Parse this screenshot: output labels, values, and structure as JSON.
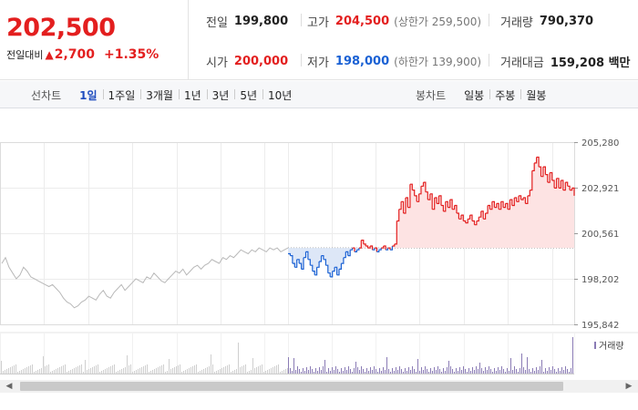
{
  "header": {
    "price": "202,500",
    "change_label": "전일대비",
    "change_arrow": "▲",
    "change_value": "2,700",
    "change_pct": "+1.35%",
    "stats": {
      "prev_label": "전일",
      "prev_value": "199,800",
      "high_label": "고가",
      "high_value": "204,500",
      "upper_limit": "(상한가 259,500)",
      "volume_label": "거래량",
      "volume_value": "790,370",
      "open_label": "시가",
      "open_value": "200,000",
      "low_label": "저가",
      "low_value": "198,000",
      "lower_limit": "(하한가 139,900)",
      "amount_label": "거래대금",
      "amount_value": "159,208 백만"
    }
  },
  "toolbar": {
    "line_title": "선차트",
    "line_periods": [
      "1일",
      "1주일",
      "3개월",
      "1년",
      "3년",
      "5년",
      "10년"
    ],
    "active_period": "1일",
    "candle_title": "봉차트",
    "candle_periods": [
      "일봉",
      "주봉",
      "월봉"
    ]
  },
  "chart_data": {
    "type": "line",
    "ylim": [
      195842,
      205280
    ],
    "y_ticks": [
      "205,280",
      "202,921",
      "200,561",
      "198,202",
      "195,842"
    ],
    "y_tick_values": [
      205280,
      202921,
      200561,
      198202,
      195842
    ],
    "reference_price": 199800,
    "volume_legend": "거래량",
    "colors": {
      "up": "#e31f1f",
      "down": "#1a61d4",
      "prev": "#b8b8b8",
      "fill_up": "#fde3e3",
      "fill_down": "#dde7f7",
      "volume": "#8a7bb5"
    },
    "series": [
      {
        "values": [
          199000,
          199300,
          198800,
          198500,
          198200,
          198400,
          198800,
          198600,
          198300,
          198200,
          198100,
          198000,
          197900,
          197800,
          197900,
          197700,
          197500,
          197200,
          197000,
          196900,
          196700,
          196800,
          197000,
          197100,
          197300,
          197200,
          197100,
          197400,
          197600,
          197300,
          197200,
          197500,
          197700,
          197900,
          197600,
          197800,
          198000,
          198200,
          198100,
          198000,
          198300,
          198200,
          198500,
          198300,
          198100,
          198000,
          198200,
          198400,
          198600,
          198500,
          198700,
          198400,
          198600,
          198800,
          198900,
          198700,
          198900,
          199000,
          199200,
          199100,
          199000,
          199300,
          199200,
          199400,
          199300,
          199500,
          199700,
          199600,
          199500,
          199700,
          199600,
          199800,
          199700,
          199600,
          199800,
          199700,
          199800,
          199600,
          199700,
          199800
        ]
      },
      {
        "values": [
          199500,
          199400,
          199000,
          198800,
          199200,
          199000,
          198700,
          199300,
          199600,
          199200,
          198900,
          198600,
          198400,
          198800,
          199100,
          199400,
          199200,
          198900,
          198500,
          198300,
          198600,
          198800,
          198400,
          198700,
          199000,
          199300,
          199600,
          199400,
          199700,
          199800,
          199600,
          199700,
          199800,
          200200,
          200000,
          199900,
          199800,
          199900,
          199700,
          199800,
          199600,
          199700,
          199800,
          199900,
          199700,
          199800,
          199700,
          199900,
          200000,
          201200,
          201800,
          202200,
          201600,
          202400,
          201900,
          203100,
          202800,
          202500,
          202200,
          202600,
          203000,
          203200,
          202700,
          202300,
          202600,
          201800,
          202400,
          202100,
          202500,
          202000,
          201700,
          202200,
          201900,
          202300,
          201800,
          202000,
          201600,
          201300,
          201500,
          201200,
          201100,
          201300,
          201500,
          201200,
          201000,
          201200,
          201400,
          201700,
          201300,
          201600,
          202000,
          201800,
          202200,
          201900,
          202100,
          201800,
          202200,
          201900,
          202100,
          201800,
          202300,
          202000,
          202400,
          202200,
          202500,
          202300,
          202400,
          202100,
          202500,
          202800,
          203800,
          204200,
          204500,
          204000,
          203500,
          204000,
          203600,
          203200,
          203700,
          203300,
          202900,
          203400,
          202900,
          203300,
          202800,
          203200,
          203000,
          202800,
          202900,
          202500
        ]
      }
    ],
    "volume_note": "Estimated relative volume bars (one per tick)"
  }
}
